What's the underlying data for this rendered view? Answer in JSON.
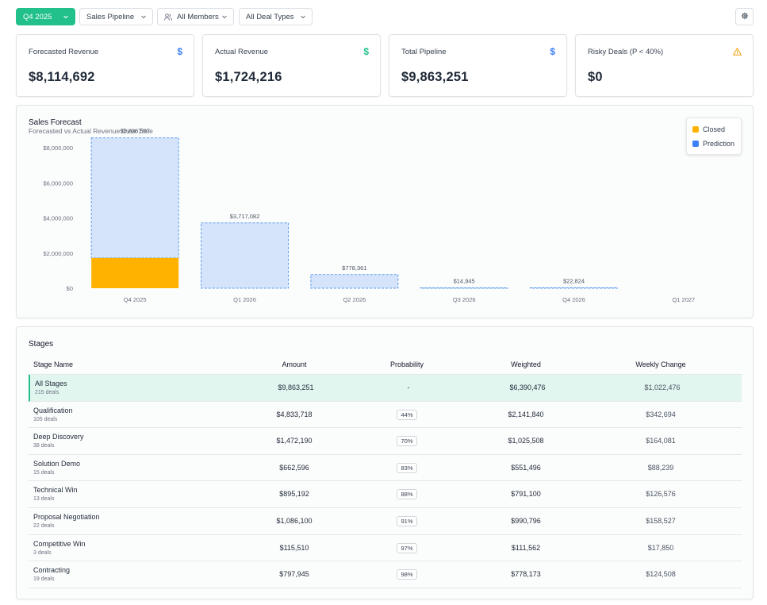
{
  "filters": {
    "quarter": "Q4 2025",
    "pipeline": "Sales Pipeline",
    "members": "All Members",
    "deal_types": "All Deal Types"
  },
  "kpis": [
    {
      "label": "Forecasted Revenue",
      "value": "$8,114,692",
      "icon": "dollar-icon",
      "color": "#3b82f6"
    },
    {
      "label": "Actual Revenue",
      "value": "$1,724,216",
      "icon": "dollar-icon",
      "color": "#22c08a"
    },
    {
      "label": "Total Pipeline",
      "value": "$9,863,251",
      "icon": "dollar-icon",
      "color": "#3b82f6"
    },
    {
      "label": "Risky Deals (P < 40%)",
      "value": "$0",
      "icon": "warning-icon",
      "color": "#f59e0b"
    }
  ],
  "chart": {
    "title": "Sales Forecast",
    "subtitle": "Forecasted vs Actual Revenue Over Time",
    "legend": [
      {
        "label": "Closed",
        "color": "#ffb300"
      },
      {
        "label": "Prediction",
        "color": "#3b82f6"
      }
    ]
  },
  "chart_data": {
    "type": "bar",
    "categories": [
      "Q4 2025",
      "Q1 2026",
      "Q2 2026",
      "Q3 2026",
      "Q4 2026",
      "Q1 2027"
    ],
    "series": [
      {
        "name": "Closed",
        "values": [
          1724216,
          0,
          0,
          0,
          0,
          0
        ],
        "color": "#ffb300"
      },
      {
        "name": "Prediction",
        "values": [
          6836597,
          3717082,
          778361,
          14945,
          22824,
          0
        ],
        "color": "#3b82f6"
      }
    ],
    "data_labels": [
      "$6,836,597",
      "$3,717,082",
      "$778,361",
      "$14,945",
      "$22,824",
      ""
    ],
    "y_ticks": [
      "$0",
      "$2,000,000",
      "$4,000,000",
      "$6,000,000",
      "$8,000,000"
    ],
    "ylim": [
      0,
      8000000
    ],
    "legend_position": "top-right",
    "grid": false
  },
  "stages": {
    "title": "Stages",
    "columns": [
      "Stage Name",
      "Amount",
      "Probability",
      "Weighted",
      "Weekly Change"
    ],
    "rows": [
      {
        "name": "All Stages",
        "deals": "215 deals",
        "amount": "$9,863,251",
        "probability": "-",
        "weighted": "$6,390,476",
        "weekly": "$1,022,476"
      },
      {
        "name": "Qualification",
        "deals": "105 deals",
        "amount": "$4,833,718",
        "probability": "44%",
        "weighted": "$2,141,840",
        "weekly": "$342,694"
      },
      {
        "name": "Deep Discovery",
        "deals": "38 deals",
        "amount": "$1,472,190",
        "probability": "70%",
        "weighted": "$1,025,508",
        "weekly": "$164,081"
      },
      {
        "name": "Solution Demo",
        "deals": "15 deals",
        "amount": "$662,596",
        "probability": "83%",
        "weighted": "$551,496",
        "weekly": "$88,239"
      },
      {
        "name": "Technical Win",
        "deals": "13 deals",
        "amount": "$895,192",
        "probability": "88%",
        "weighted": "$791,100",
        "weekly": "$126,576"
      },
      {
        "name": "Proposal Negotiation",
        "deals": "22 deals",
        "amount": "$1,086,100",
        "probability": "91%",
        "weighted": "$990,796",
        "weekly": "$158,527"
      },
      {
        "name": "Competitive Win",
        "deals": "3 deals",
        "amount": "$115,510",
        "probability": "97%",
        "weighted": "$111,562",
        "weekly": "$17,850"
      },
      {
        "name": "Contracting",
        "deals": "19 deals",
        "amount": "$797,945",
        "probability": "98%",
        "weighted": "$778,173",
        "weekly": "$124,508"
      }
    ]
  }
}
